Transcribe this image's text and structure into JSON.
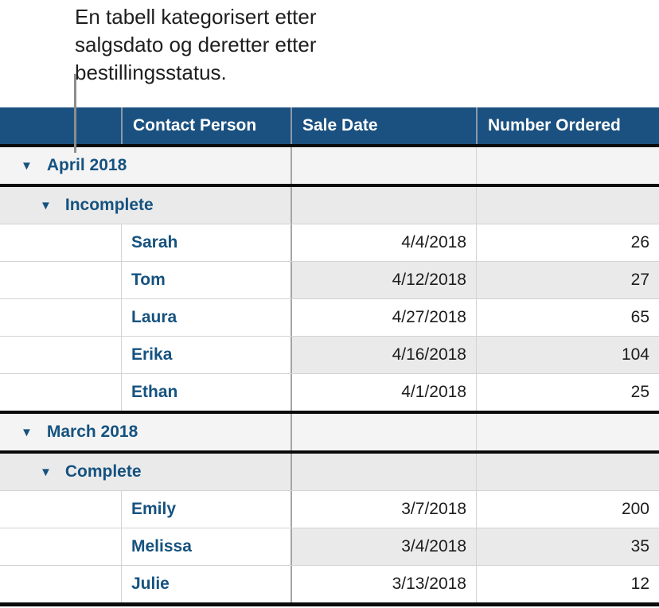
{
  "annotation": {
    "line1": "En tabell kategorisert etter",
    "line2": "salgsdato og deretter etter",
    "line3": "bestillingsstatus."
  },
  "table": {
    "headers": {
      "contact_person": "Contact Person",
      "sale_date": "Sale Date",
      "number_ordered": "Number Ordered"
    },
    "disclosure_icon": "▼",
    "groups": [
      {
        "label": "April 2018",
        "status_label": "Incomplete",
        "rows": [
          {
            "name": "Sarah",
            "date": "4/4/2018",
            "qty": "26"
          },
          {
            "name": "Tom",
            "date": "4/12/2018",
            "qty": "27"
          },
          {
            "name": "Laura",
            "date": "4/27/2018",
            "qty": "65"
          },
          {
            "name": "Erika",
            "date": "4/16/2018",
            "qty": "104"
          },
          {
            "name": "Ethan",
            "date": "4/1/2018",
            "qty": "25"
          }
        ]
      },
      {
        "label": "March 2018",
        "status_label": "Complete",
        "rows": [
          {
            "name": "Emily",
            "date": "3/7/2018",
            "qty": "200"
          },
          {
            "name": "Melissa",
            "date": "3/4/2018",
            "qty": "35"
          },
          {
            "name": "Julie",
            "date": "3/13/2018",
            "qty": "12"
          }
        ]
      }
    ]
  },
  "colors": {
    "header_bg": "#1b5180",
    "header_text": "#ffffff",
    "blue_text": "#15527f",
    "level1_bg": "#f4f4f5",
    "level2_bg": "#eaeaeb",
    "stripe_bg": "#eaeaeb",
    "thin_border": "#d3d3d4",
    "mid_border": "#a5a5a5",
    "header_divider": "#8b99a6",
    "black_line": "#0a0a0a",
    "data_text": "#1c1c1c",
    "callout_line": "#8d8d8d",
    "annotation_text": "#1e1e1e"
  }
}
